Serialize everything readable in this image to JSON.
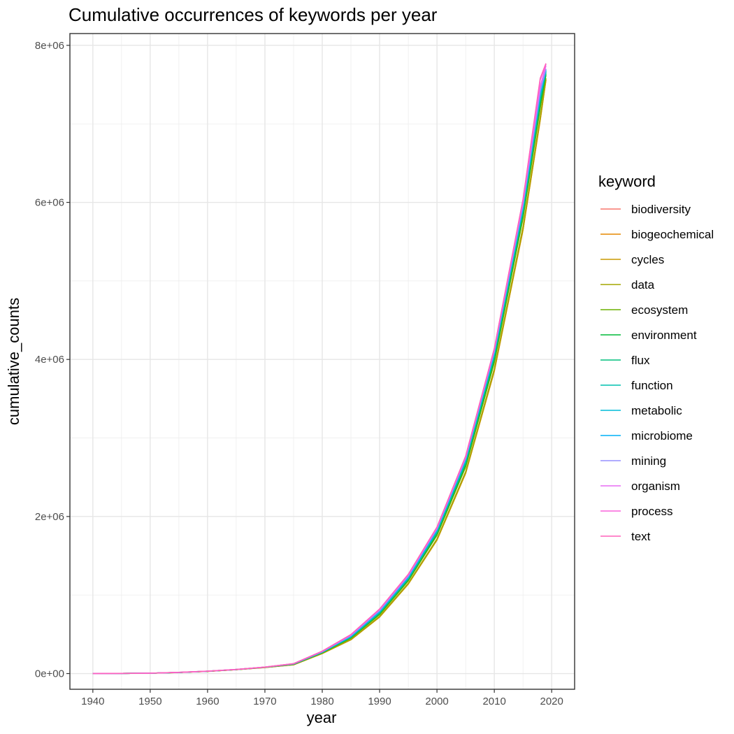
{
  "chart_data": {
    "type": "line",
    "title": "Cumulative occurrences of keywords per year",
    "xlabel": "year",
    "ylabel": "cumulative_counts",
    "xlim": [
      1936,
      2024
    ],
    "ylim": [
      -200000,
      8150000
    ],
    "x_ticks": [
      1940,
      1950,
      1960,
      1970,
      1980,
      1990,
      2000,
      2010,
      2020
    ],
    "x_tick_labels": [
      "1940",
      "1950",
      "1960",
      "1970",
      "1980",
      "1990",
      "2000",
      "2010",
      "2020"
    ],
    "y_ticks": [
      0,
      2000000,
      4000000,
      6000000,
      8000000
    ],
    "y_tick_labels": [
      "0e+00",
      "2e+06",
      "4e+06",
      "6e+06",
      "8e+06"
    ],
    "grid": true,
    "legend": {
      "title": "keyword",
      "placement": "right"
    },
    "x": [
      1940,
      1945,
      1950,
      1955,
      1960,
      1965,
      1970,
      1975,
      1980,
      1985,
      1990,
      1995,
      2000,
      2005,
      2010,
      2015,
      2018,
      2019
    ],
    "series": [
      {
        "name": "biodiversity",
        "color": "#F8766D",
        "values": [
          0,
          2000,
          5000,
          15000,
          30000,
          52000,
          82000,
          125000,
          280000,
          490000,
          810000,
          1250000,
          1850000,
          2750000,
          4120000,
          6000000,
          7450000,
          7700000
        ]
      },
      {
        "name": "biogeochemical",
        "color": "#E58700",
        "values": [
          0,
          1800,
          4600,
          13800,
          28000,
          49000,
          77000,
          112000,
          255000,
          430000,
          720000,
          1140000,
          1700000,
          2550000,
          3850000,
          5650000,
          7050000,
          7560000
        ]
      },
      {
        "name": "cycles",
        "color": "#C99800",
        "values": [
          0,
          1800,
          4600,
          13800,
          28000,
          49000,
          77000,
          112000,
          255000,
          430000,
          720000,
          1140000,
          1700000,
          2550000,
          3850000,
          5650000,
          7050000,
          7560000
        ]
      },
      {
        "name": "data",
        "color": "#A3A500",
        "values": [
          0,
          1850,
          4700,
          14000,
          28500,
          49500,
          78000,
          114000,
          258000,
          435000,
          728000,
          1150000,
          1715000,
          2570000,
          3880000,
          5690000,
          7090000,
          7580000
        ]
      },
      {
        "name": "ecosystem",
        "color": "#6BB100",
        "values": [
          0,
          1900,
          4800,
          14300,
          29000,
          50500,
          79500,
          117000,
          264000,
          450000,
          750000,
          1180000,
          1760000,
          2630000,
          3960000,
          5800000,
          7200000,
          7620000
        ]
      },
      {
        "name": "environment",
        "color": "#00BA38",
        "values": [
          0,
          1900,
          4850,
          14500,
          29200,
          51000,
          80000,
          119000,
          268000,
          458000,
          762000,
          1195000,
          1780000,
          2660000,
          4000000,
          5850000,
          7260000,
          7640000
        ]
      },
      {
        "name": "flux",
        "color": "#00BF7D",
        "values": [
          0,
          1950,
          4900,
          14600,
          29400,
          51200,
          80500,
          120000,
          270000,
          462000,
          770000,
          1205000,
          1795000,
          2680000,
          4030000,
          5880000,
          7300000,
          7660000
        ]
      },
      {
        "name": "function",
        "color": "#00C0AF",
        "values": [
          0,
          1950,
          4900,
          14700,
          29600,
          51400,
          81000,
          121000,
          272000,
          468000,
          778000,
          1215000,
          1810000,
          2700000,
          4055000,
          5910000,
          7340000,
          7670000
        ]
      },
      {
        "name": "metabolic",
        "color": "#00BCD8",
        "values": [
          0,
          1960,
          4950,
          14800,
          29700,
          51600,
          81200,
          122000,
          274000,
          472000,
          785000,
          1222000,
          1820000,
          2715000,
          4070000,
          5930000,
          7370000,
          7680000
        ]
      },
      {
        "name": "microbiome",
        "color": "#00B0F6",
        "values": [
          0,
          1970,
          4960,
          14850,
          29800,
          51700,
          81500,
          123000,
          276000,
          476000,
          792000,
          1230000,
          1830000,
          2725000,
          4085000,
          5950000,
          7390000,
          7690000
        ]
      },
      {
        "name": "mining",
        "color": "#9590FF",
        "values": [
          0,
          1980,
          4970,
          14900,
          29900,
          51800,
          81700,
          124000,
          278000,
          482000,
          800000,
          1240000,
          1840000,
          2738000,
          4100000,
          5970000,
          7420000,
          7700000
        ]
      },
      {
        "name": "organism",
        "color": "#E76BF3",
        "values": [
          0,
          2000,
          5000,
          15000,
          30000,
          52000,
          82000,
          125000,
          282000,
          492000,
          815000,
          1255000,
          1855000,
          2755000,
          4125000,
          6010000,
          7480000,
          7740000
        ]
      },
      {
        "name": "process",
        "color": "#FA62DB",
        "values": [
          0,
          2000,
          5000,
          15000,
          30100,
          52100,
          82200,
          126000,
          284000,
          495000,
          820000,
          1262000,
          1862000,
          2765000,
          4135000,
          6030000,
          7560000,
          7760000
        ]
      },
      {
        "name": "text",
        "color": "#FF62BC",
        "values": [
          0,
          2000,
          5000,
          15000,
          30200,
          52200,
          82300,
          126500,
          285000,
          497000,
          822000,
          1265000,
          1866000,
          2770000,
          4140000,
          6040000,
          7580000,
          7770000
        ]
      }
    ]
  }
}
